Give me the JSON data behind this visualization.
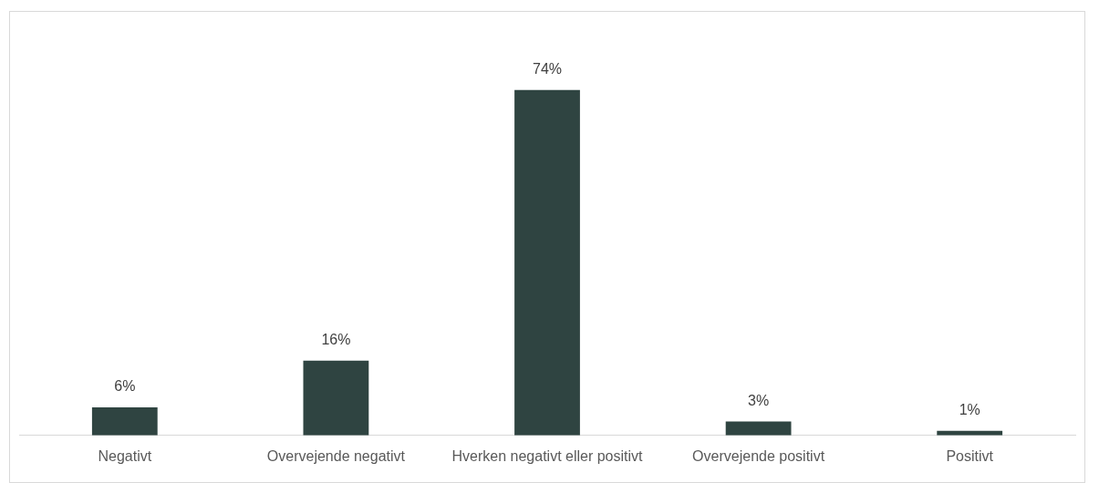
{
  "chart_data": {
    "type": "bar",
    "categories": [
      "Negativt",
      "Overvejende negativt",
      "Hverken negativt eller positivt",
      "Overvejende positivt",
      "Positivt"
    ],
    "values": [
      6,
      16,
      74,
      3,
      1
    ],
    "color": "#2f4441",
    "value_labels": [
      "6%",
      "16%",
      "74%",
      "3%",
      "1%"
    ],
    "grid": false,
    "legend": false
  }
}
